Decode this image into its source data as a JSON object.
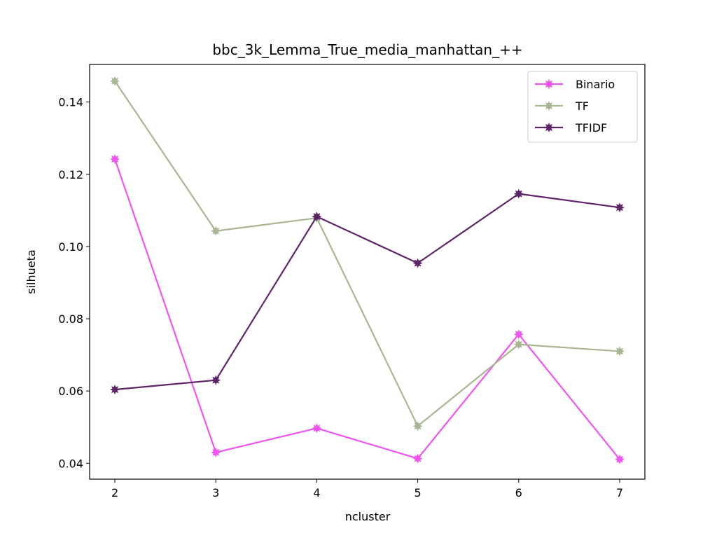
{
  "chart_data": {
    "type": "line",
    "title": "bbc_3k_Lemma_True_media_manhattan_++",
    "xlabel": "ncluster",
    "ylabel": "silhueta",
    "x": [
      2,
      3,
      4,
      5,
      6,
      7
    ],
    "xlim": [
      1.75,
      7.25
    ],
    "ylim": [
      0.0356,
      0.1504
    ],
    "xticks": [
      2,
      3,
      4,
      5,
      6,
      7
    ],
    "yticks": [
      0.04,
      0.06,
      0.08,
      0.1,
      0.12,
      0.14
    ],
    "ytick_labels": [
      "0.04",
      "0.06",
      "0.08",
      "0.10",
      "0.12",
      "0.14"
    ],
    "grid": false,
    "legend_position": "top-right",
    "series": [
      {
        "name": "Binario",
        "color": "#ee55ee",
        "values": [
          0.1242,
          0.043,
          0.0497,
          0.0413,
          0.0757,
          0.0411
        ]
      },
      {
        "name": "TF",
        "color": "#a9b693",
        "values": [
          0.1458,
          0.1043,
          0.1079,
          0.0503,
          0.0729,
          0.071
        ]
      },
      {
        "name": "TFIDF",
        "color": "#5e2468",
        "values": [
          0.0604,
          0.063,
          0.1083,
          0.0954,
          0.1146,
          0.1108
        ]
      }
    ]
  }
}
